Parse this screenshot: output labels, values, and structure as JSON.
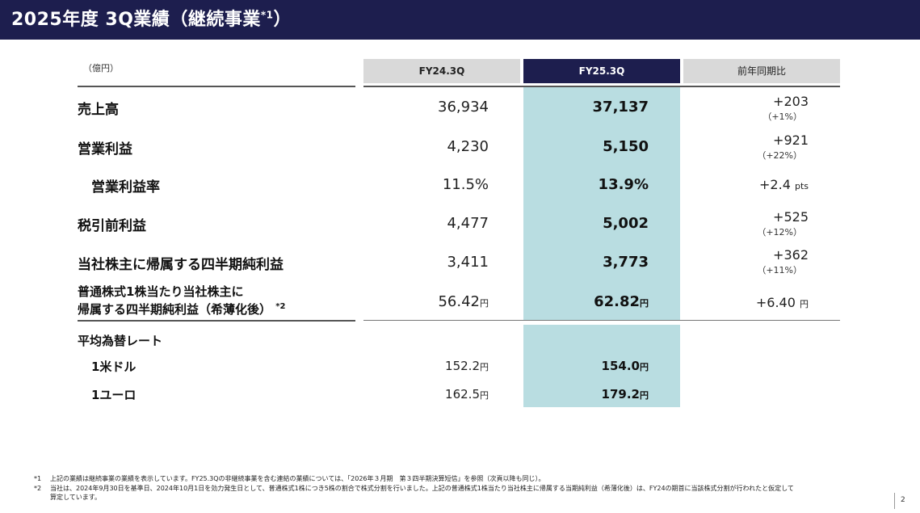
{
  "title": {
    "main": "2025年度 3Q業績（継続事業",
    "sup": "*1",
    "end": "）"
  },
  "unit": "（億円）",
  "headers": {
    "col1": "FY24.3Q",
    "col2": "FY25.3Q",
    "col3": "前年同期比"
  },
  "rows": [
    {
      "label": "売上高",
      "fy24": "36,934",
      "fy25": "37,137",
      "diff": "+203",
      "pct": "（+1%）"
    },
    {
      "label": "営業利益",
      "fy24": "4,230",
      "fy25": "5,150",
      "diff": "+921",
      "pct": "（+22%）"
    },
    {
      "label": "営業利益率",
      "fy24": "11.5%",
      "fy25": "13.9%",
      "diff": "+2.4",
      "diff_unit": "pts"
    },
    {
      "label": "税引前利益",
      "fy24": "4,477",
      "fy25": "5,002",
      "diff": "+525",
      "pct": "（+12%）"
    },
    {
      "label": "当社株主に帰属する四半期純利益",
      "fy24": "3,411",
      "fy25": "3,773",
      "diff": "+362",
      "pct": "（+11%）"
    },
    {
      "label1": "普通株式1株当たり当社株主に",
      "label2": "帰属する四半期純利益（希薄化後）",
      "label_sup": "*2",
      "fy24": "56.42",
      "fy25": "62.82",
      "yen": "円",
      "diff": "+6.40",
      "diff_unit": "円"
    }
  ],
  "fx": {
    "heading": "平均為替レート",
    "usd": {
      "label": "1米ドル",
      "fy24": "152.2",
      "fy25": "154.0",
      "yen": "円"
    },
    "eur": {
      "label": "1ユーロ",
      "fy24": "162.5",
      "fy25": "179.2",
      "yen": "円"
    }
  },
  "footnotes": [
    {
      "mark": "*1",
      "text": "上記の業績は継続事業の業績を表示しています。FY25.3Qの非継続事業を含む連結の業績については、「2026年３月期　第３四半期決算短信」を参照（次頁以降も同じ）。"
    },
    {
      "mark": "*2",
      "text": "当社は、2024年9月30日を基準日、2024年10月1日を効力発生日として、普通株式1株につき5株の割合で株式分割を行いました。上記の普通株式1株当たり当社株主に帰属する当期純利益（希薄化後）は、FY24の期首に当該株式分割が行われたと仮定して"
    },
    {
      "mark": "",
      "text": "算定しています。"
    }
  ],
  "page_number": "2"
}
